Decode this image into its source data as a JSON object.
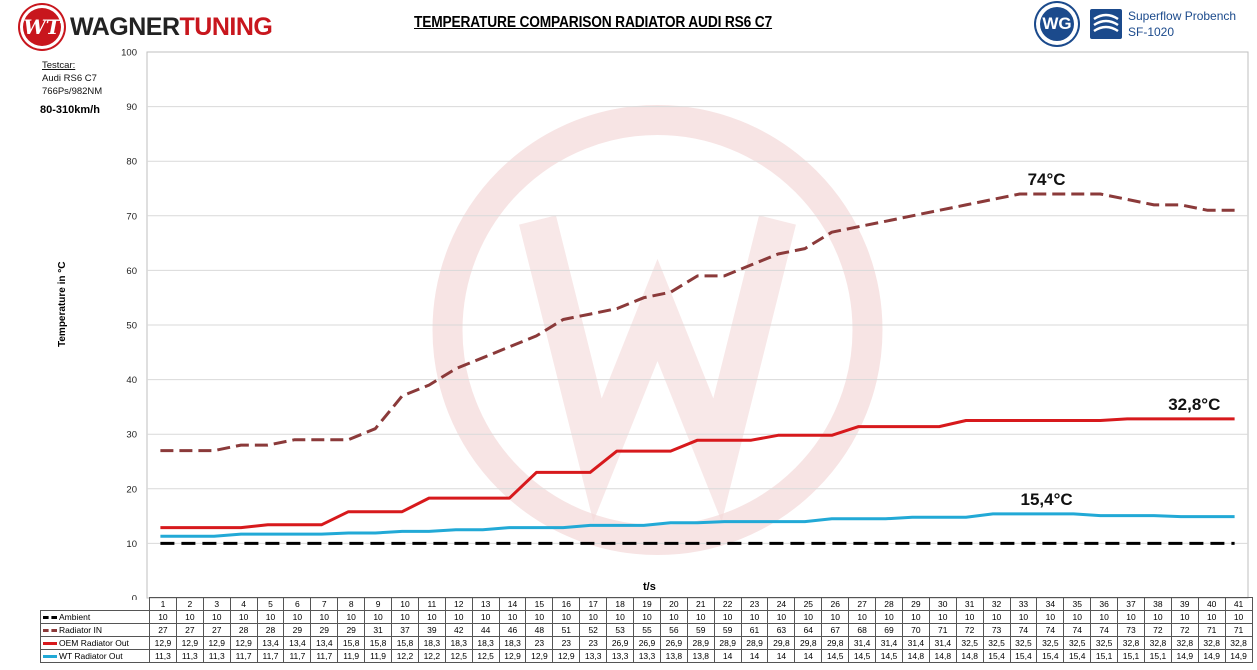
{
  "header": {
    "brand_part1": "WAGNER",
    "brand_part2": "TUNING",
    "brand_logo_letters": "WT",
    "right_logo_letters": "WG",
    "superflow_line1": "Superflow Probench",
    "superflow_line2": "SF-1020"
  },
  "info": {
    "test_car_label": "Testcar:",
    "car": "Audi RS6 C7",
    "power": "766Ps/982NM",
    "speed_range": "80-310km/h"
  },
  "colors": {
    "ambient": "#000000",
    "radiator_in": "#8b3a3a",
    "oem_out": "#d7191c",
    "wt_out": "#22a9d6",
    "grid": "#d9d9d9",
    "watermark": "#f3d8d8"
  },
  "chart_data": {
    "type": "line",
    "title": "TEMPERATURE COMPARISON RADIATOR AUDI RS6 C7",
    "xlabel": "t/s",
    "ylabel": "Temperature in °C",
    "ylim": [
      0,
      100
    ],
    "yticks": [
      0,
      10,
      20,
      30,
      40,
      50,
      60,
      70,
      80,
      90,
      100
    ],
    "grid": true,
    "x": [
      1,
      2,
      3,
      4,
      5,
      6,
      7,
      8,
      9,
      10,
      11,
      12,
      13,
      14,
      15,
      16,
      17,
      18,
      19,
      20,
      21,
      22,
      23,
      24,
      25,
      26,
      27,
      28,
      29,
      30,
      31,
      32,
      33,
      34,
      35,
      36,
      37,
      38,
      39,
      40,
      41
    ],
    "series": [
      {
        "name": "Ambient",
        "key": "ambient",
        "style": "dashed",
        "values": [
          10,
          10,
          10,
          10,
          10,
          10,
          10,
          10,
          10,
          10,
          10,
          10,
          10,
          10,
          10,
          10,
          10,
          10,
          10,
          10,
          10,
          10,
          10,
          10,
          10,
          10,
          10,
          10,
          10,
          10,
          10,
          10,
          10,
          10,
          10,
          10,
          10,
          10,
          10,
          10,
          10
        ],
        "labels": [
          "10",
          "10",
          "10",
          "10",
          "10",
          "10",
          "10",
          "10",
          "10",
          "10",
          "10",
          "10",
          "10",
          "10",
          "10",
          "10",
          "10",
          "10",
          "10",
          "10",
          "10",
          "10",
          "10",
          "10",
          "10",
          "10",
          "10",
          "10",
          "10",
          "10",
          "10",
          "10",
          "10",
          "10",
          "10",
          "10",
          "10",
          "10",
          "10",
          "10",
          "10"
        ]
      },
      {
        "name": "Radiator IN",
        "key": "radiator_in",
        "style": "dashed",
        "values": [
          27,
          27,
          27,
          28,
          28,
          29,
          29,
          29,
          31,
          37,
          39,
          42,
          44,
          46,
          48,
          51,
          52,
          53,
          55,
          56,
          59,
          59,
          61,
          63,
          64,
          67,
          68,
          69,
          70,
          71,
          72,
          73,
          74,
          74,
          74,
          74,
          73,
          72,
          72,
          71,
          71
        ],
        "labels": [
          "27",
          "27",
          "27",
          "28",
          "28",
          "29",
          "29",
          "29",
          "31",
          "37",
          "39",
          "42",
          "44",
          "46",
          "48",
          "51",
          "52",
          "53",
          "55",
          "56",
          "59",
          "59",
          "61",
          "63",
          "64",
          "67",
          "68",
          "69",
          "70",
          "71",
          "72",
          "73",
          "74",
          "74",
          "74",
          "74",
          "73",
          "72",
          "72",
          "71",
          "71"
        ]
      },
      {
        "name": "OEM Radiator Out",
        "key": "oem_out",
        "style": "solid",
        "values": [
          12.9,
          12.9,
          12.9,
          12.9,
          13.4,
          13.4,
          13.4,
          15.8,
          15.8,
          15.8,
          18.3,
          18.3,
          18.3,
          18.3,
          23,
          23,
          23,
          26.9,
          26.9,
          26.9,
          28.9,
          28.9,
          28.9,
          29.8,
          29.8,
          29.8,
          31.4,
          31.4,
          31.4,
          31.4,
          32.5,
          32.5,
          32.5,
          32.5,
          32.5,
          32.5,
          32.8,
          32.8,
          32.8,
          32.8,
          32.8
        ],
        "labels": [
          "12,9",
          "12,9",
          "12,9",
          "12,9",
          "13,4",
          "13,4",
          "13,4",
          "15,8",
          "15,8",
          "15,8",
          "18,3",
          "18,3",
          "18,3",
          "18,3",
          "23",
          "23",
          "23",
          "26,9",
          "26,9",
          "26,9",
          "28,9",
          "28,9",
          "28,9",
          "29,8",
          "29,8",
          "29,8",
          "31,4",
          "31,4",
          "31,4",
          "31,4",
          "32,5",
          "32,5",
          "32,5",
          "32,5",
          "32,5",
          "32,5",
          "32,8",
          "32,8",
          "32,8",
          "32,8",
          "32,8"
        ]
      },
      {
        "name": "WT Radiator Out",
        "key": "wt_out",
        "style": "solid",
        "values": [
          11.3,
          11.3,
          11.3,
          11.7,
          11.7,
          11.7,
          11.7,
          11.9,
          11.9,
          12.2,
          12.2,
          12.5,
          12.5,
          12.9,
          12.9,
          12.9,
          13.3,
          13.3,
          13.3,
          13.8,
          13.8,
          14,
          14,
          14,
          14,
          14.5,
          14.5,
          14.5,
          14.8,
          14.8,
          14.8,
          15.4,
          15.4,
          15.4,
          15.4,
          15.1,
          15.1,
          15.1,
          14.9,
          14.9,
          14.9
        ],
        "labels": [
          "11,3",
          "11,3",
          "11,3",
          "11,7",
          "11,7",
          "11,7",
          "11,7",
          "11,9",
          "11,9",
          "12,2",
          "12,2",
          "12,5",
          "12,5",
          "12,9",
          "12,9",
          "12,9",
          "13,3",
          "13,3",
          "13,3",
          "13,8",
          "13,8",
          "14",
          "14",
          "14",
          "14",
          "14,5",
          "14,5",
          "14,5",
          "14,8",
          "14,8",
          "14,8",
          "15,4",
          "15,4",
          "15,4",
          "15,4",
          "15,1",
          "15,1",
          "15,1",
          "14,9",
          "14,9",
          "14,9"
        ]
      }
    ],
    "annotations": [
      {
        "text": "74°C",
        "x": 34,
        "y": 74
      },
      {
        "text": "32,8°C",
        "x": 39.5,
        "y": 32.8
      },
      {
        "text": "15,4°C",
        "x": 34,
        "y": 15.4
      }
    ]
  }
}
